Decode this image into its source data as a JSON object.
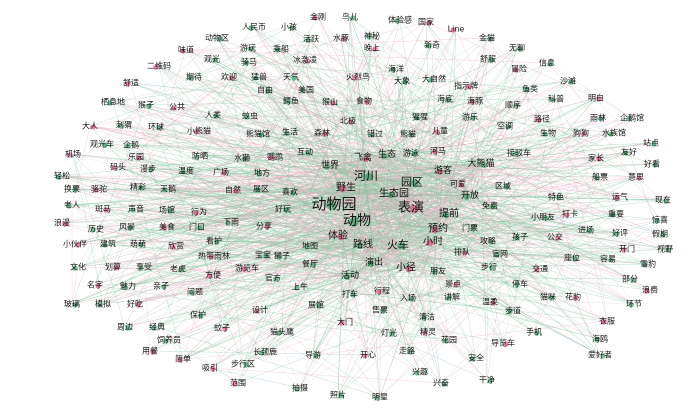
{
  "nodes": [
    "金刚",
    "鸟儿",
    "体验感",
    "国家",
    "人民币",
    "小孩",
    "Line",
    "动物区",
    "活跃",
    "水豚",
    "神秘",
    "金猫",
    "味道",
    "游玩",
    "乘船",
    "晚上",
    "新奇",
    "无聊",
    "二维码",
    "观光",
    "骑马",
    "冰激凌",
    "海洋",
    "舒服",
    "冒险",
    "信息",
    "期待",
    "欢迎",
    "猛兽",
    "天气",
    "火烈鸟",
    "大象",
    "大自然",
    "指示牌",
    "鱼类",
    "沙滩",
    "舒适",
    "自由",
    "美国",
    "食物",
    "鳄鱼",
    "海底",
    "海豚",
    "顺序",
    "科普",
    "明白",
    "栖息地",
    "猴子",
    "公共",
    "人类",
    "蚊虫",
    "北极",
    "猩猩",
    "游乐",
    "路径",
    "雨林",
    "企鹅馆",
    "大人",
    "刺猬",
    "环球",
    "小熊猫",
    "熊猫馆",
    "生活",
    "森林",
    "错过",
    "熊猫",
    "儿童",
    "空调",
    "生物",
    "狗狗",
    "水族馆",
    "站点",
    "机场",
    "观光车",
    "企鹅",
    "乐园",
    "防晒",
    "水獭",
    "鹦鹉",
    "互动",
    "世界",
    "飞禽",
    "生态",
    "游泳",
    "河马",
    "大熊猫",
    "接驳车",
    "家长",
    "友好",
    "好看",
    "码头",
    "漫步",
    "温度",
    "广场",
    "地方",
    "河川",
    "游客",
    "区域",
    "船票",
    "意思",
    "轻松",
    "换票",
    "骆驼",
    "精彩",
    "天鹅",
    "自然",
    "展区",
    "喜欢",
    "野生",
    "园区",
    "生态园",
    "可爱",
    "开放",
    "特色",
    "运气",
    "现在",
    "老人",
    "斑马",
    "声音",
    "场馆",
    "行为",
    "好玩",
    "动物园",
    "表演",
    "提前",
    "免费",
    "打卡",
    "小朋友",
    "重要",
    "浪漫",
    "历史",
    "风景",
    "美食",
    "门口",
    "下雨",
    "分享",
    "动物",
    "门票",
    "预约",
    "进场",
    "惊喜",
    "小伙伴",
    "建筑",
    "萌萌",
    "欣赏",
    "看护",
    "地图",
    "体验",
    "路线",
    "火车",
    "小时",
    "攻略",
    "孩子",
    "公交",
    "好评",
    "假期",
    "热带雨林",
    "宝宝",
    "狮子",
    "排队",
    "官网",
    "座位",
    "开门",
    "视野",
    "文化",
    "划算",
    "享受",
    "老虎",
    "游览车",
    "餐厅",
    "演出",
    "小径",
    "朋友",
    "步行",
    "交通",
    "容易",
    "雪豹",
    "名字",
    "魅力",
    "亲子",
    "方便",
    "官方",
    "活动",
    "景点",
    "停车",
    "部分",
    "浪费",
    "玻璃",
    "模拟",
    "好吃",
    "问题",
    "打车",
    "行程",
    "入场",
    "讲解",
    "花豹",
    "环节",
    "保护",
    "设计",
    "展馆",
    "清洁",
    "温柔",
    "步道",
    "猫咪",
    "衣服",
    "周边",
    "经典",
    "蚊子",
    "猫头鹰",
    "灯光",
    "精灵",
    "手机",
    "饲养员",
    "用餐",
    "长颈鹿",
    "导游",
    "开心",
    "走路",
    "花园",
    "导览车",
    "海鸥",
    "爱好者",
    "简单",
    "步行区",
    "安全",
    "吸引",
    "兴趣",
    "干净",
    "范围",
    "兴奋",
    "明星",
    "猴山",
    "上午",
    "售票",
    "大门",
    "照片",
    "拍摄"
  ],
  "colors": {
    "edge_green": "#7cc49a",
    "edge_pink": "#f0a3bf",
    "edge_grey": "#c9c9c9",
    "node_green": "#2e9e5e",
    "node_pink": "#e0457b",
    "label": "#141414",
    "background": "#ffffff"
  }
}
